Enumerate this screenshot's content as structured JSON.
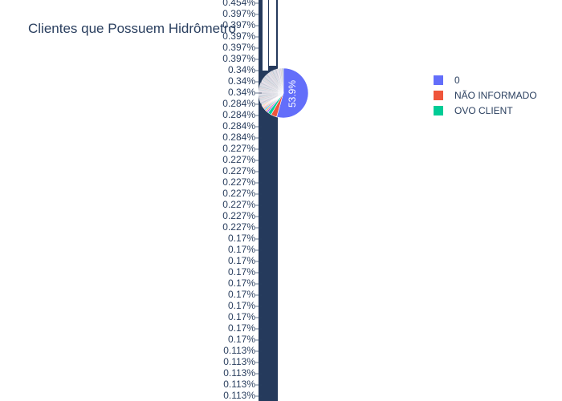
{
  "chart_data": {
    "type": "pie",
    "title": "Clientes que Possuem Hidrômetro",
    "legend_position": "right",
    "inside_labels": [
      "53.9%"
    ],
    "outside_labels": [
      "0.454%",
      "0.397%",
      "0.397%",
      "0.397%",
      "0.397%",
      "0.397%",
      "0.34%",
      "0.34%",
      "0.34%",
      "0.284%",
      "0.284%",
      "0.284%",
      "0.284%",
      "0.227%",
      "0.227%",
      "0.227%",
      "0.227%",
      "0.227%",
      "0.227%",
      "0.227%",
      "0.227%",
      "0.17%",
      "0.17%",
      "0.17%",
      "0.17%",
      "0.17%",
      "0.17%",
      "0.17%",
      "0.17%",
      "0.17%",
      "0.17%",
      "0.113%",
      "0.113%",
      "0.113%",
      "0.113%",
      "0.113%"
    ],
    "legend": [
      {
        "label": "0",
        "color": "#636efa"
      },
      {
        "label": "NÃO INFORMADO",
        "color": "#ef553b"
      },
      {
        "label": "OVO CLIENT",
        "color": "#00cc96"
      }
    ],
    "slices": [
      {
        "label": "0",
        "value": 53.9,
        "color": "#636efa"
      },
      {
        "label": "NÃO INFORMADO",
        "value": 3.8,
        "color": "#ef553b"
      },
      {
        "label": "OVO CLIENT",
        "value": 2.4,
        "color": "#00cc96"
      },
      {
        "value": 1.2,
        "color": "#ab63fa"
      },
      {
        "value": 1.0,
        "color": "#ffa15a"
      },
      {
        "value": 0.9,
        "color": "#19d3f3"
      },
      {
        "value": 0.8,
        "color": "#ff6692"
      },
      {
        "value": 0.7,
        "color": "#b6e880"
      },
      {
        "value": 0.7,
        "color": "#ff97ff"
      },
      {
        "value": 0.6,
        "color": "#fecb52"
      }
    ],
    "remaining_share": 33.1,
    "band_color": "#253a5c"
  }
}
